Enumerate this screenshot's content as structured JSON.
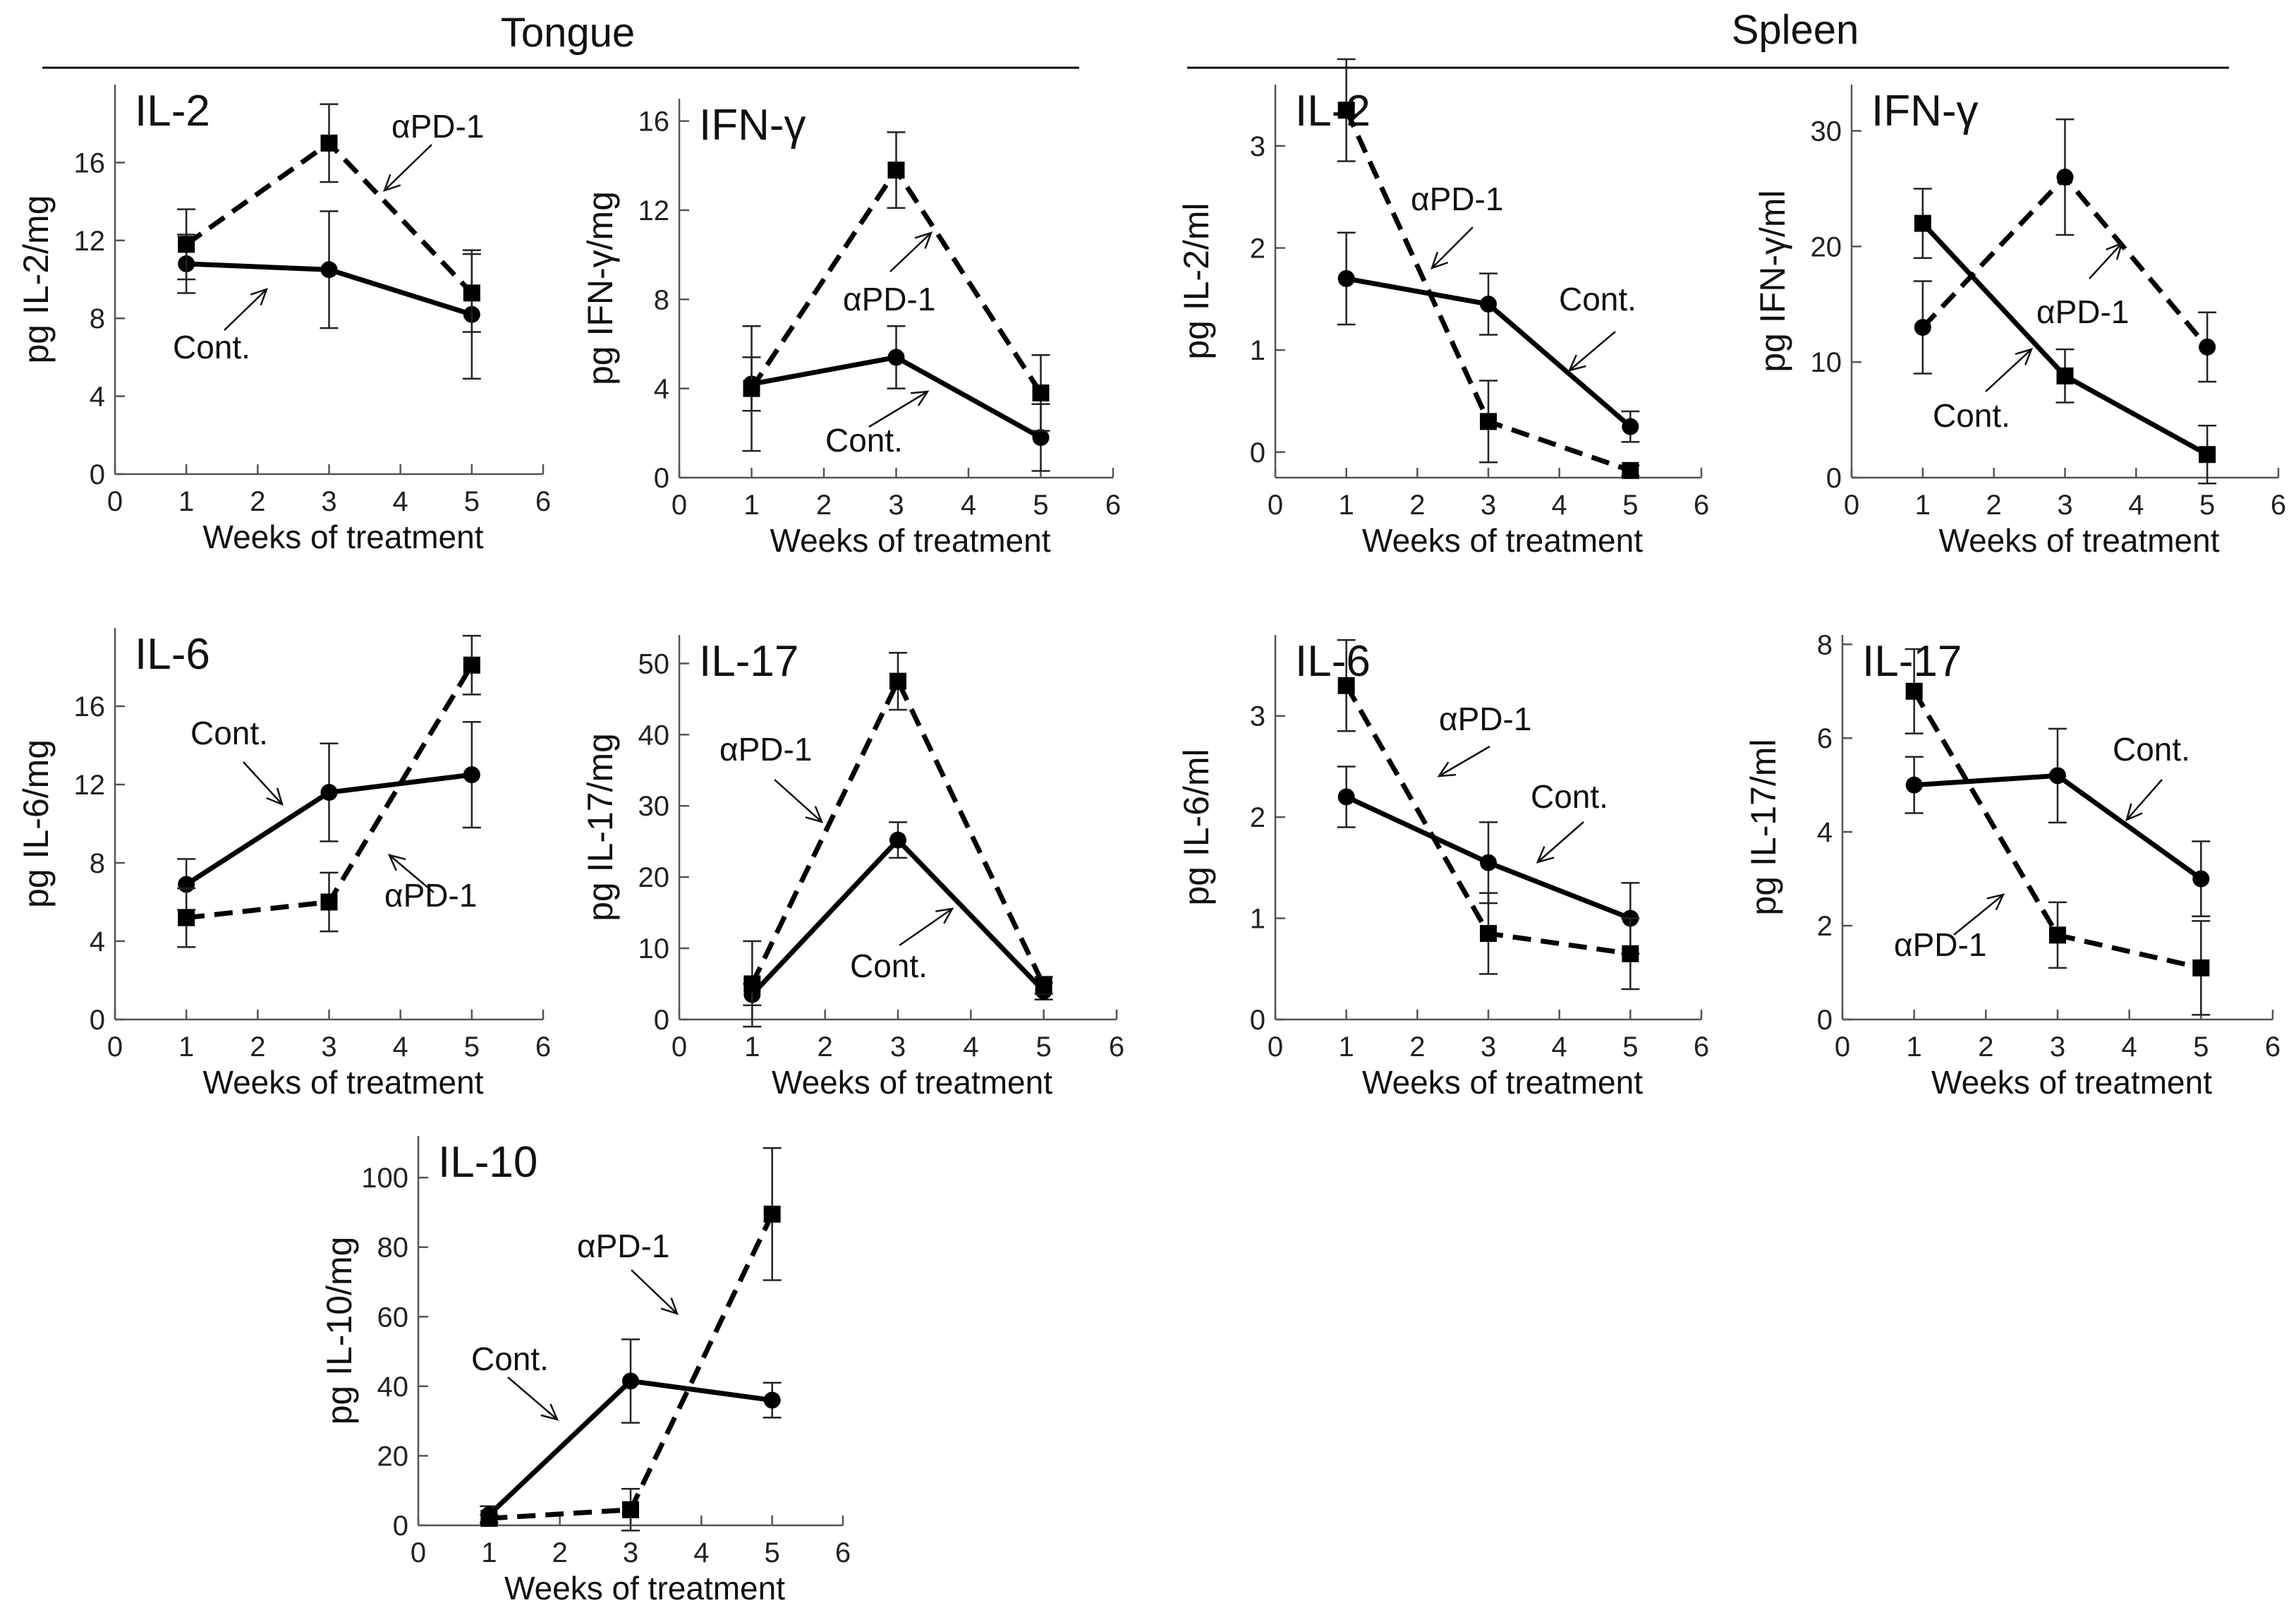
{
  "sections": [
    {
      "name": "Tongue"
    },
    {
      "name": "Spleen"
    }
  ],
  "chart_data": [
    {
      "type": "line",
      "section": "Tongue",
      "title": "IL-2",
      "xlabel": "Weeks of treatment",
      "ylabel": "pg IL-2/mg",
      "x": [
        1,
        3,
        5
      ],
      "xlim": [
        0,
        6
      ],
      "xticks": [
        0,
        1,
        2,
        3,
        4,
        5,
        6
      ],
      "ylim": [
        0,
        20
      ],
      "yticks": [
        0,
        4,
        8,
        12,
        16
      ],
      "ytick_labels": [
        "0",
        "4",
        "8",
        "12",
        "16"
      ],
      "series": [
        {
          "name": "Cont.",
          "style": "solid",
          "marker": "circle",
          "values": [
            10.8,
            10.5,
            8.2
          ],
          "errors": [
            1.5,
            3.0,
            3.3
          ]
        },
        {
          "name": "αPD-1",
          "style": "dashed",
          "marker": "square",
          "values": [
            11.8,
            17.0,
            9.3
          ],
          "errors": [
            1.8,
            2.0,
            2.0
          ]
        }
      ],
      "annotations": [
        {
          "text": "αPD-1",
          "series": "αPD-1"
        },
        {
          "text": "Cont.",
          "series": "Cont."
        }
      ]
    },
    {
      "type": "line",
      "section": "Tongue",
      "title": "IFN-γ",
      "xlabel": "Weeks of treatment",
      "ylabel": "pg IFN-γ/mg",
      "x": [
        1,
        3,
        5
      ],
      "xlim": [
        0,
        6
      ],
      "xticks": [
        0,
        1,
        2,
        3,
        4,
        5,
        6
      ],
      "ylim": [
        0,
        17
      ],
      "yticks": [
        0,
        4,
        8,
        12,
        16
      ],
      "ytick_labels": [
        "0",
        "4",
        "8",
        "12",
        "16"
      ],
      "series": [
        {
          "name": "Cont.",
          "style": "solid",
          "marker": "circle",
          "values": [
            4.2,
            5.4,
            1.8
          ],
          "errors": [
            1.2,
            1.4,
            1.5
          ]
        },
        {
          "name": "αPD-1",
          "style": "dashed",
          "marker": "square",
          "values": [
            4.0,
            13.8,
            3.8
          ],
          "errors": [
            2.8,
            1.7,
            1.7
          ]
        }
      ],
      "annotations": [
        {
          "text": "αPD-1",
          "series": "αPD-1"
        },
        {
          "text": "Cont.",
          "series": "Cont."
        }
      ]
    },
    {
      "type": "line",
      "section": "Spleen",
      "title": "IL-2",
      "xlabel": "Weeks of treatment",
      "ylabel": "pg IL-2/ml",
      "x": [
        1,
        3,
        5
      ],
      "xlim": [
        0,
        6
      ],
      "xticks": [
        0,
        1,
        2,
        3,
        4,
        5,
        6
      ],
      "ylim": [
        -0.25,
        3.6
      ],
      "yticks": [
        0,
        1,
        2,
        3
      ],
      "ytick_labels": [
        "0",
        "1",
        "2",
        "3"
      ],
      "series": [
        {
          "name": "Cont.",
          "style": "solid",
          "marker": "circle",
          "values": [
            1.7,
            1.45,
            0.25
          ],
          "errors": [
            0.45,
            0.3,
            0.15
          ]
        },
        {
          "name": "αPD-1",
          "style": "dashed",
          "marker": "square",
          "values": [
            3.35,
            0.3,
            -0.18
          ],
          "errors": [
            0.5,
            0.4,
            0.05
          ]
        }
      ],
      "annotations": [
        {
          "text": "αPD-1",
          "series": "αPD-1"
        },
        {
          "text": "Cont.",
          "series": "Cont."
        }
      ]
    },
    {
      "type": "line",
      "section": "Spleen",
      "title": "IFN-γ",
      "xlabel": "Weeks of treatment",
      "ylabel": "pg IFN-γ/ml",
      "x": [
        1,
        3,
        5
      ],
      "xlim": [
        0,
        6
      ],
      "xticks": [
        0,
        1,
        2,
        3,
        4,
        5,
        6
      ],
      "ylim": [
        0,
        34
      ],
      "yticks": [
        0,
        10,
        20,
        30
      ],
      "ytick_labels": [
        "0",
        "10",
        "20",
        "30"
      ],
      "series": [
        {
          "name": "Cont.",
          "style": "solid",
          "marker": "square",
          "values": [
            22.0,
            8.8,
            2.0
          ],
          "errors": [
            3.0,
            2.3,
            2.5
          ]
        },
        {
          "name": "αPD-1",
          "style": "dashed",
          "marker": "circle",
          "values": [
            13.0,
            26.0,
            11.3
          ],
          "errors": [
            4.0,
            5.0,
            3.0
          ]
        }
      ],
      "annotations": [
        {
          "text": "αPD-1",
          "series": "αPD-1"
        },
        {
          "text": "Cont.",
          "series": "Cont."
        }
      ]
    },
    {
      "type": "line",
      "section": "Tongue",
      "title": "IL-6",
      "xlabel": "Weeks of treatment",
      "ylabel": "pg IL-6/mg",
      "x": [
        1,
        3,
        5
      ],
      "xlim": [
        0,
        6
      ],
      "xticks": [
        0,
        1,
        2,
        3,
        4,
        5,
        6
      ],
      "ylim": [
        0,
        20
      ],
      "yticks": [
        0,
        4,
        8,
        12,
        16
      ],
      "ytick_labels": [
        "0",
        "4",
        "8",
        "12",
        "16"
      ],
      "series": [
        {
          "name": "Cont.",
          "style": "solid",
          "marker": "circle",
          "values": [
            6.9,
            11.6,
            12.5
          ],
          "errors": [
            1.3,
            2.5,
            2.7
          ]
        },
        {
          "name": "αPD-1",
          "style": "dashed",
          "marker": "square",
          "values": [
            5.2,
            6.0,
            18.1
          ],
          "errors": [
            1.5,
            1.5,
            1.5
          ]
        }
      ],
      "annotations": [
        {
          "text": "Cont.",
          "series": "Cont."
        },
        {
          "text": "αPD-1",
          "series": "αPD-1"
        }
      ]
    },
    {
      "type": "line",
      "section": "Tongue",
      "title": "IL-17",
      "xlabel": "Weeks of treatment",
      "ylabel": "pg IL-17/mg",
      "x": [
        1,
        3,
        5
      ],
      "xlim": [
        0,
        6
      ],
      "xticks": [
        0,
        1,
        2,
        3,
        4,
        5,
        6
      ],
      "ylim": [
        0,
        54
      ],
      "yticks": [
        0,
        10,
        20,
        30,
        40,
        50
      ],
      "ytick_labels": [
        "0",
        "10",
        "20",
        "30",
        "40",
        "50"
      ],
      "series": [
        {
          "name": "Cont.",
          "style": "solid",
          "marker": "circle",
          "values": [
            3.5,
            25.2,
            4.0
          ],
          "errors": [
            1.5,
            2.5,
            1.2
          ]
        },
        {
          "name": "αPD-1",
          "style": "dashed",
          "marker": "square",
          "values": [
            5.0,
            47.5,
            4.8
          ],
          "errors": [
            6.0,
            4.0,
            1.2
          ]
        }
      ],
      "annotations": [
        {
          "text": "αPD-1",
          "series": "αPD-1"
        },
        {
          "text": "Cont.",
          "series": "Cont."
        }
      ]
    },
    {
      "type": "line",
      "section": "Spleen",
      "title": "IL-6",
      "xlabel": "Weeks of treatment",
      "ylabel": "pg IL-6/ml",
      "x": [
        1,
        3,
        5
      ],
      "xlim": [
        0,
        6
      ],
      "xticks": [
        0,
        1,
        2,
        3,
        4,
        5,
        6
      ],
      "ylim": [
        0,
        3.8
      ],
      "yticks": [
        0,
        1,
        2,
        3
      ],
      "ytick_labels": [
        "0",
        "1",
        "2",
        "3"
      ],
      "series": [
        {
          "name": "Cont.",
          "style": "solid",
          "marker": "circle",
          "values": [
            2.2,
            1.55,
            1.0
          ],
          "errors": [
            0.3,
            0.4,
            0.35
          ]
        },
        {
          "name": "αPD-1",
          "style": "dashed",
          "marker": "square",
          "values": [
            3.3,
            0.85,
            0.65
          ],
          "errors": [
            0.45,
            0.4,
            0.35
          ]
        }
      ],
      "annotations": [
        {
          "text": "αPD-1",
          "series": "αPD-1"
        },
        {
          "text": "Cont.",
          "series": "Cont."
        }
      ]
    },
    {
      "type": "line",
      "section": "Spleen",
      "title": "IL-17",
      "xlabel": "Weeks of treatment",
      "ylabel": "pg IL-17/ml",
      "x": [
        1,
        3,
        5
      ],
      "xlim": [
        0,
        6
      ],
      "xticks": [
        0,
        1,
        2,
        3,
        4,
        5,
        6
      ],
      "ylim": [
        0,
        8.2
      ],
      "yticks": [
        0,
        2,
        4,
        6,
        8
      ],
      "ytick_labels": [
        "0",
        "2",
        "4",
        "6",
        "8"
      ],
      "series": [
        {
          "name": "Cont.",
          "style": "solid",
          "marker": "circle",
          "values": [
            5.0,
            5.2,
            3.0
          ],
          "errors": [
            0.6,
            1.0,
            0.8
          ]
        },
        {
          "name": "αPD-1",
          "style": "dashed",
          "marker": "square",
          "values": [
            7.0,
            1.8,
            1.1
          ],
          "errors": [
            0.9,
            0.7,
            1.0
          ]
        }
      ],
      "annotations": [
        {
          "text": "Cont.",
          "series": "Cont."
        },
        {
          "text": "αPD-1",
          "series": "αPD-1"
        }
      ]
    },
    {
      "type": "line",
      "section": "Tongue",
      "title": "IL-10",
      "xlabel": "Weeks of treatment",
      "ylabel": "pg IL-10/mg",
      "x": [
        1,
        3,
        5
      ],
      "xlim": [
        0,
        6
      ],
      "xticks": [
        0,
        1,
        2,
        3,
        4,
        5,
        6
      ],
      "ylim": [
        0,
        112
      ],
      "yticks": [
        0,
        20,
        40,
        60,
        80,
        100
      ],
      "ytick_labels": [
        "0",
        "20",
        "40",
        "60",
        "80",
        "100"
      ],
      "series": [
        {
          "name": "Cont.",
          "style": "solid",
          "marker": "circle",
          "values": [
            3.0,
            41.5,
            36.0
          ],
          "errors": [
            2.5,
            12.0,
            5.0
          ]
        },
        {
          "name": "αPD-1",
          "style": "dashed",
          "marker": "square",
          "values": [
            2.0,
            4.5,
            89.5
          ],
          "errors": [
            1.0,
            6.0,
            19.0
          ]
        }
      ],
      "annotations": [
        {
          "text": "αPD-1",
          "series": "αPD-1"
        },
        {
          "text": "Cont.",
          "series": "Cont."
        }
      ]
    }
  ]
}
